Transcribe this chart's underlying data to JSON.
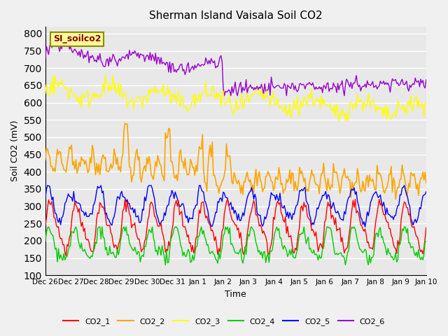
{
  "title": "Sherman Island Vaisala Soil CO2",
  "xlabel": "Time",
  "ylabel": "Soil CO2 (mV)",
  "ylim": [
    100,
    820
  ],
  "annotation_text": "SI_soilco2",
  "annotation_color": "#8B0000",
  "annotation_bg": "#FFFF99",
  "annotation_border": "#8B8B00",
  "series_colors": {
    "CO2_1": "#FF0000",
    "CO2_2": "#FFA500",
    "CO2_3": "#FFFF00",
    "CO2_4": "#00CC00",
    "CO2_5": "#0000FF",
    "CO2_6": "#9900CC"
  },
  "bg_color": "#E8E8E8",
  "grid_color": "#FFFFFF",
  "n_points": 350,
  "tick_labels": [
    "Dec 26",
    "Dec 27",
    "Dec 28",
    "Dec 29",
    "Dec 30",
    "Dec 31",
    "Jan 1",
    "Jan 2",
    "Jan 3",
    "Jan 4",
    "Jan 5",
    "Jan 6",
    "Jan 7",
    "Jan 8",
    "Jan 9",
    "Jan 10"
  ]
}
